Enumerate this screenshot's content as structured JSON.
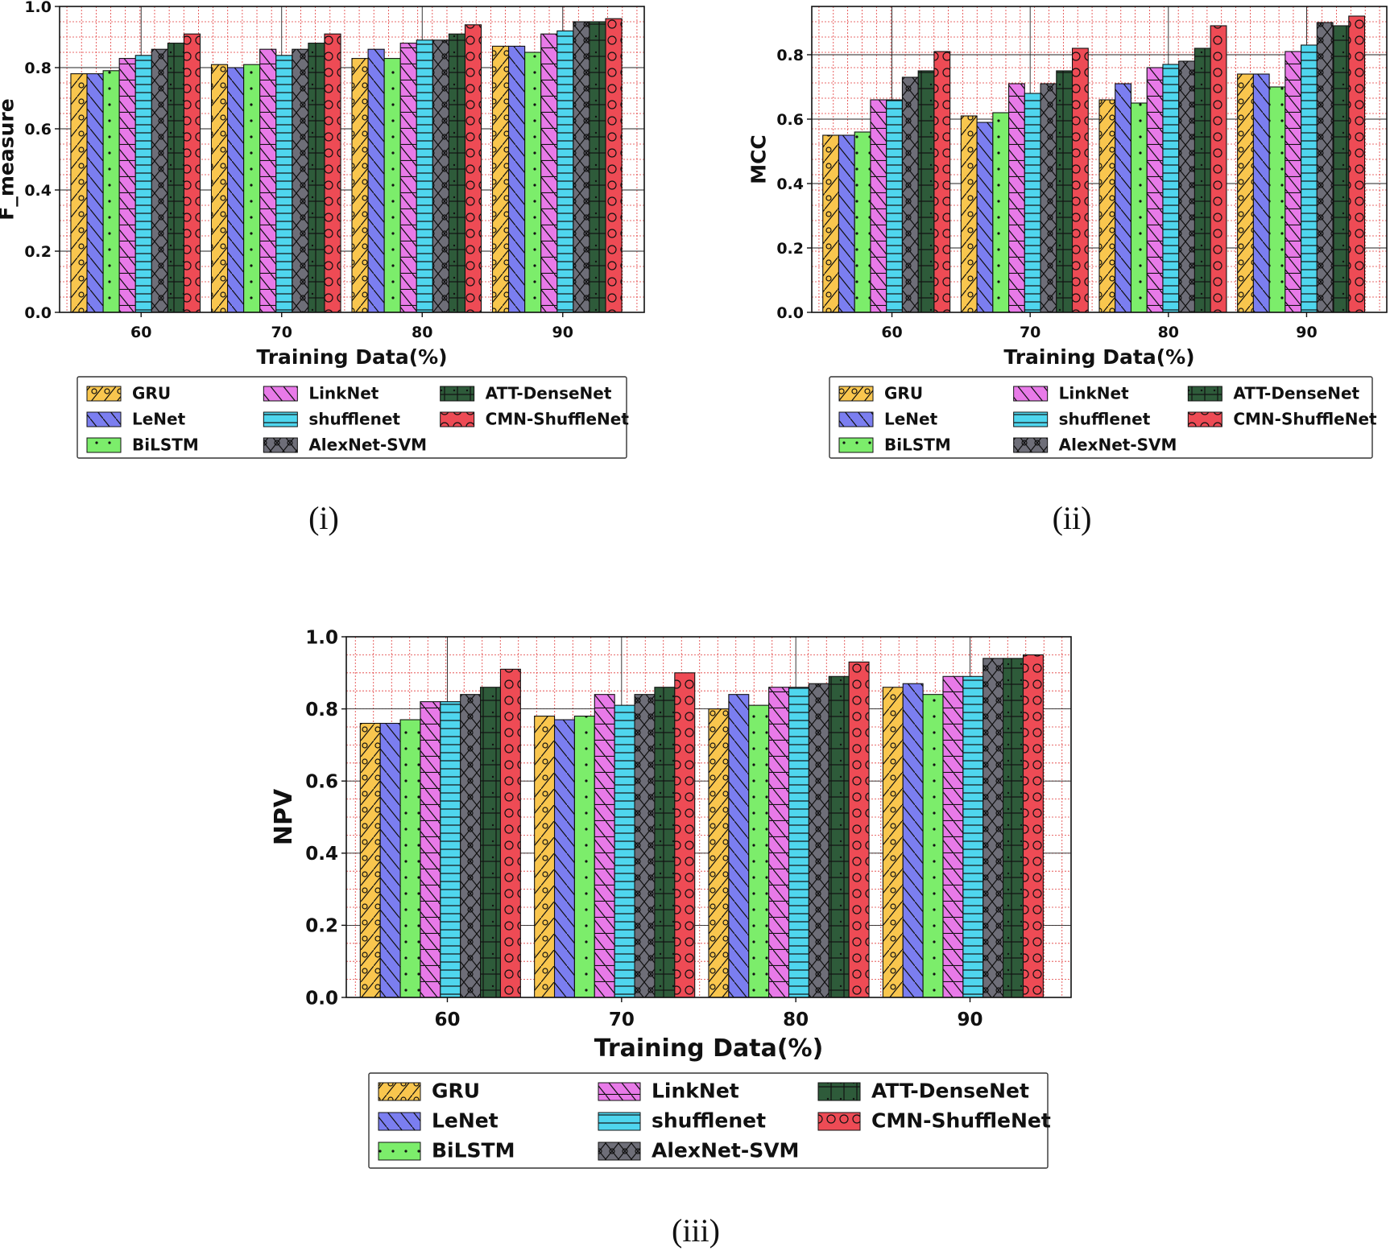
{
  "legend": {
    "series": [
      {
        "name": "GRU",
        "color": "#f9c64e",
        "hatch": "slash-circle"
      },
      {
        "name": "LeNet",
        "color": "#7b7ef0",
        "hatch": "backslash"
      },
      {
        "name": "BiLSTM",
        "color": "#7ced6b",
        "hatch": "dots"
      },
      {
        "name": "LinkNet",
        "color": "#e87ae8",
        "hatch": "backslash-h"
      },
      {
        "name": "shufflenet",
        "color": "#4fd6ee",
        "hatch": "hlines"
      },
      {
        "name": "AlexNet-SVM",
        "color": "#6e6e78",
        "hatch": "xcircle"
      },
      {
        "name": "ATT-DenseNet",
        "color": "#2e5b3a",
        "hatch": "grid"
      },
      {
        "name": "CMN-ShuffleNet",
        "color": "#ee4b55",
        "hatch": "circles"
      }
    ]
  },
  "chart_data": [
    {
      "type": "bar",
      "panel_caption": "(i)",
      "xlabel": "Training Data(%)",
      "ylabel": "F_measure",
      "categories": [
        "60",
        "70",
        "80",
        "90"
      ],
      "ylim": [
        0,
        1.0
      ],
      "yticks": [
        "0.0",
        "0.2",
        "0.4",
        "0.6",
        "0.8",
        "1.0"
      ],
      "series": [
        {
          "name": "GRU",
          "values": [
            0.78,
            0.81,
            0.83,
            0.87
          ]
        },
        {
          "name": "LeNet",
          "values": [
            0.78,
            0.8,
            0.86,
            0.87
          ]
        },
        {
          "name": "BiLSTM",
          "values": [
            0.79,
            0.81,
            0.83,
            0.85
          ]
        },
        {
          "name": "LinkNet",
          "values": [
            0.83,
            0.86,
            0.88,
            0.91
          ]
        },
        {
          "name": "shufflenet",
          "values": [
            0.84,
            0.84,
            0.89,
            0.92
          ]
        },
        {
          "name": "AlexNet-SVM",
          "values": [
            0.86,
            0.86,
            0.89,
            0.95
          ]
        },
        {
          "name": "ATT-DenseNet",
          "values": [
            0.88,
            0.88,
            0.91,
            0.95
          ]
        },
        {
          "name": "CMN-ShuffleNet",
          "values": [
            0.91,
            0.91,
            0.94,
            0.96
          ]
        }
      ]
    },
    {
      "type": "bar",
      "panel_caption": "(ii)",
      "xlabel": "Training Data(%)",
      "ylabel": "MCC",
      "categories": [
        "60",
        "70",
        "80",
        "90"
      ],
      "ylim": [
        0,
        0.95
      ],
      "yticks": [
        "0.0",
        "0.2",
        "0.4",
        "0.6",
        "0.8"
      ],
      "series": [
        {
          "name": "GRU",
          "values": [
            0.55,
            0.61,
            0.66,
            0.74
          ]
        },
        {
          "name": "LeNet",
          "values": [
            0.55,
            0.59,
            0.71,
            0.74
          ]
        },
        {
          "name": "BiLSTM",
          "values": [
            0.56,
            0.62,
            0.65,
            0.7
          ]
        },
        {
          "name": "LinkNet",
          "values": [
            0.66,
            0.71,
            0.76,
            0.81
          ]
        },
        {
          "name": "shufflenet",
          "values": [
            0.66,
            0.68,
            0.77,
            0.83
          ]
        },
        {
          "name": "AlexNet-SVM",
          "values": [
            0.73,
            0.71,
            0.78,
            0.9
          ]
        },
        {
          "name": "ATT-DenseNet",
          "values": [
            0.75,
            0.75,
            0.82,
            0.89
          ]
        },
        {
          "name": "CMN-ShuffleNet",
          "values": [
            0.81,
            0.82,
            0.89,
            0.92
          ]
        }
      ]
    },
    {
      "type": "bar",
      "panel_caption": "(iii)",
      "xlabel": "Training Data(%)",
      "ylabel": "NPV",
      "categories": [
        "60",
        "70",
        "80",
        "90"
      ],
      "ylim": [
        0,
        1.0
      ],
      "yticks": [
        "0.0",
        "0.2",
        "0.4",
        "0.6",
        "0.8",
        "1.0"
      ],
      "series": [
        {
          "name": "GRU",
          "values": [
            0.76,
            0.78,
            0.8,
            0.86
          ]
        },
        {
          "name": "LeNet",
          "values": [
            0.76,
            0.77,
            0.84,
            0.87
          ]
        },
        {
          "name": "BiLSTM",
          "values": [
            0.77,
            0.78,
            0.81,
            0.84
          ]
        },
        {
          "name": "LinkNet",
          "values": [
            0.82,
            0.84,
            0.86,
            0.89
          ]
        },
        {
          "name": "shufflenet",
          "values": [
            0.82,
            0.81,
            0.86,
            0.89
          ]
        },
        {
          "name": "AlexNet-SVM",
          "values": [
            0.84,
            0.84,
            0.87,
            0.94
          ]
        },
        {
          "name": "ATT-DenseNet",
          "values": [
            0.86,
            0.86,
            0.89,
            0.94
          ]
        },
        {
          "name": "CMN-ShuffleNet",
          "values": [
            0.91,
            0.9,
            0.93,
            0.95
          ]
        }
      ]
    }
  ]
}
